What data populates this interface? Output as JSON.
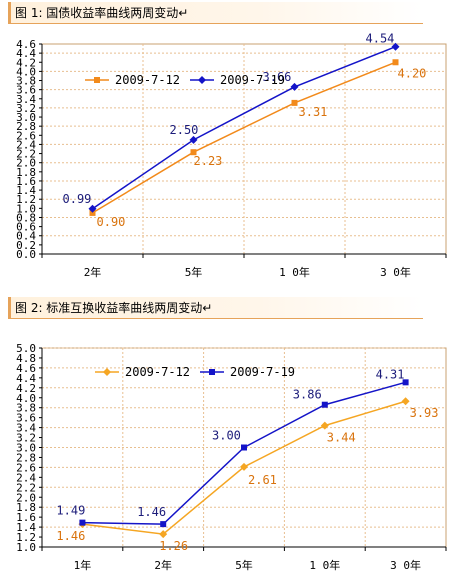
{
  "figure1_title": "图 1: 国债收益率曲线两周变动↵",
  "figure2_title": "图 2: 标准互换收益率曲线两周变动↵",
  "chart_data": [
    {
      "type": "line",
      "categories": [
        "2年",
        "5年",
        "1 0年",
        "3 0年"
      ],
      "yticks": [
        "0.0",
        "0.2",
        "0.4",
        "0.6",
        "0.8",
        "1.0",
        "1.2",
        "1.4",
        "1.6",
        "1.8",
        "2.0",
        "2.2",
        "2.4",
        "2.6",
        "2.8",
        "3.0",
        "3.2",
        "3.4",
        "3.6",
        "3.8",
        "4.0",
        "4.2",
        "4.4",
        "4.6"
      ],
      "ylim": [
        0,
        4.6
      ],
      "legend": "top-left",
      "grid": true,
      "series": [
        {
          "name": "2009-7-12",
          "values": [
            0.9,
            2.23,
            3.31,
            4.2
          ],
          "labels": [
            "0.90",
            "2.23",
            "3.31",
            "4.20"
          ],
          "color": "#f28a1b",
          "marker": "square"
        },
        {
          "name": "2009-7-19",
          "values": [
            0.99,
            2.5,
            3.66,
            4.54
          ],
          "labels": [
            "0.99",
            "2.50",
            "3.66",
            "4.54"
          ],
          "color": "#1414c8",
          "marker": "diamond"
        }
      ]
    },
    {
      "type": "line",
      "categories": [
        "1年",
        "2年",
        "5年",
        "1 0年",
        "3 0年"
      ],
      "yticks": [
        "1.0",
        "1.2",
        "1.4",
        "1.6",
        "1.8",
        "2.0",
        "2.2",
        "2.4",
        "2.6",
        "2.8",
        "3.0",
        "3.2",
        "3.4",
        "3.6",
        "3.8",
        "4.0",
        "4.2",
        "4.4",
        "4.6",
        "4.8",
        "5.0"
      ],
      "ylim": [
        1.0,
        5.0
      ],
      "legend": "top-left",
      "grid": true,
      "series": [
        {
          "name": "2009-7-12",
          "values": [
            1.46,
            1.26,
            2.61,
            3.44,
            3.93
          ],
          "labels": [
            "1.46",
            "1.26",
            "2.61",
            "3.44",
            "3.93"
          ],
          "color": "#f5a623",
          "marker": "diamond"
        },
        {
          "name": "2009-7-19",
          "values": [
            1.49,
            1.46,
            3.0,
            3.86,
            4.31
          ],
          "labels": [
            "1.49",
            "1.46",
            "3.00",
            "3.86",
            "4.31"
          ],
          "color": "#1414c8",
          "marker": "square"
        }
      ]
    }
  ]
}
